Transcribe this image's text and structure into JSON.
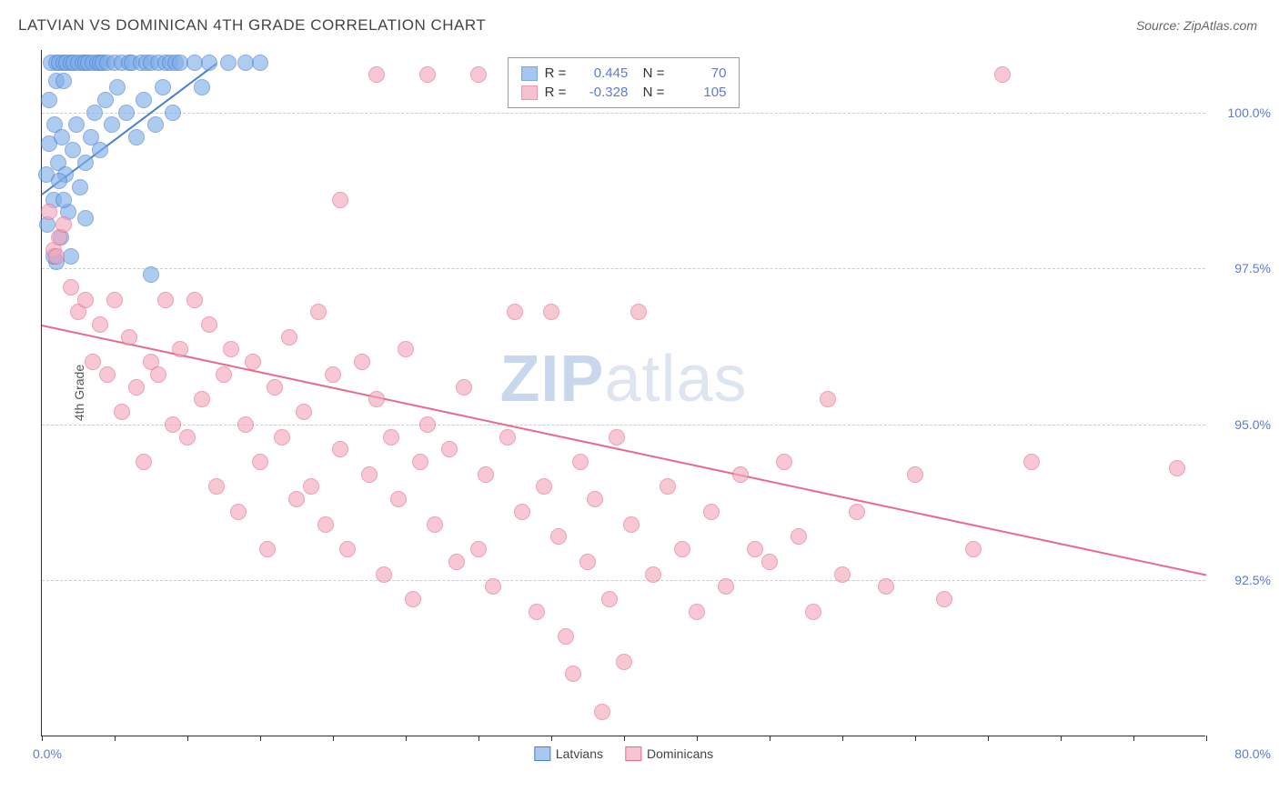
{
  "title": "LATVIAN VS DOMINICAN 4TH GRADE CORRELATION CHART",
  "source": "Source: ZipAtlas.com",
  "ylabel": "4th Grade",
  "watermark_bold": "ZIP",
  "watermark_light": "atlas",
  "chart": {
    "type": "scatter",
    "background_color": "#ffffff",
    "grid_color": "#cccccc",
    "axis_color": "#333333",
    "xlim": [
      0,
      80
    ],
    "ylim": [
      90,
      101
    ],
    "xtick_label_min": "0.0%",
    "xtick_label_max": "80.0%",
    "xtick_positions": [
      0,
      5,
      10,
      15,
      20,
      25,
      30,
      35,
      40,
      45,
      50,
      55,
      60,
      65,
      70,
      75,
      80
    ],
    "yticks": [
      {
        "v": 100.0,
        "label": "100.0%"
      },
      {
        "v": 97.5,
        "label": "97.5%"
      },
      {
        "v": 95.0,
        "label": "95.0%"
      },
      {
        "v": 92.5,
        "label": "92.5%"
      }
    ],
    "marker_radius": 9,
    "marker_stroke_width": 1.5,
    "marker_fill_opacity": 0.28,
    "trend_line_width": 2,
    "series": [
      {
        "name": "Latvians",
        "color_stroke": "#4a7fd1",
        "color_fill": "#7faee8",
        "R": "0.445",
        "N": "70",
        "trend": {
          "x1": 0,
          "y1": 98.7,
          "x2": 12,
          "y2": 100.8
        },
        "points": [
          [
            0.3,
            99.0
          ],
          [
            0.4,
            98.2
          ],
          [
            0.5,
            99.5
          ],
          [
            0.6,
            100.8
          ],
          [
            0.8,
            98.6
          ],
          [
            0.9,
            99.8
          ],
          [
            1.0,
            100.8
          ],
          [
            1.0,
            97.6
          ],
          [
            1.1,
            99.2
          ],
          [
            1.2,
            100.8
          ],
          [
            1.3,
            98.0
          ],
          [
            1.4,
            99.6
          ],
          [
            1.5,
            100.8
          ],
          [
            1.6,
            99.0
          ],
          [
            1.7,
            100.8
          ],
          [
            1.8,
            98.4
          ],
          [
            2.0,
            100.8
          ],
          [
            2.1,
            99.4
          ],
          [
            2.2,
            100.8
          ],
          [
            2.4,
            99.8
          ],
          [
            2.5,
            100.8
          ],
          [
            2.6,
            98.8
          ],
          [
            2.8,
            100.8
          ],
          [
            3.0,
            99.2
          ],
          [
            3.0,
            100.8
          ],
          [
            3.2,
            100.8
          ],
          [
            3.4,
            99.6
          ],
          [
            3.5,
            100.8
          ],
          [
            3.6,
            100.0
          ],
          [
            3.8,
            100.8
          ],
          [
            4.0,
            99.4
          ],
          [
            4.0,
            100.8
          ],
          [
            4.2,
            100.8
          ],
          [
            4.4,
            100.2
          ],
          [
            4.5,
            100.8
          ],
          [
            4.8,
            99.8
          ],
          [
            5.0,
            100.8
          ],
          [
            5.2,
            100.4
          ],
          [
            5.5,
            100.8
          ],
          [
            5.8,
            100.0
          ],
          [
            6.0,
            100.8
          ],
          [
            6.2,
            100.8
          ],
          [
            6.5,
            99.6
          ],
          [
            6.8,
            100.8
          ],
          [
            7.0,
            100.2
          ],
          [
            7.2,
            100.8
          ],
          [
            7.5,
            100.8
          ],
          [
            7.8,
            99.8
          ],
          [
            8.0,
            100.8
          ],
          [
            8.3,
            100.4
          ],
          [
            8.5,
            100.8
          ],
          [
            8.8,
            100.8
          ],
          [
            9.0,
            100.0
          ],
          [
            9.2,
            100.8
          ],
          [
            9.5,
            100.8
          ],
          [
            10.5,
            100.8
          ],
          [
            11.0,
            100.4
          ],
          [
            11.5,
            100.8
          ],
          [
            12.8,
            100.8
          ],
          [
            14.0,
            100.8
          ],
          [
            15.0,
            100.8
          ],
          [
            2.0,
            97.7
          ],
          [
            7.5,
            97.4
          ],
          [
            0.8,
            97.7
          ],
          [
            1.5,
            98.6
          ],
          [
            0.5,
            100.2
          ],
          [
            1.0,
            100.5
          ],
          [
            1.5,
            100.5
          ],
          [
            3.0,
            98.3
          ],
          [
            1.2,
            98.9
          ]
        ]
      },
      {
        "name": "Dominicans",
        "color_stroke": "#e86b8c",
        "color_fill": "#f4a8bc",
        "R": "-0.328",
        "N": "105",
        "trend": {
          "x1": 0,
          "y1": 96.6,
          "x2": 80,
          "y2": 92.6
        },
        "points": [
          [
            0.5,
            98.4
          ],
          [
            0.8,
            97.8
          ],
          [
            1.0,
            97.7
          ],
          [
            1.2,
            98.0
          ],
          [
            1.5,
            98.2
          ],
          [
            2.0,
            97.2
          ],
          [
            2.5,
            96.8
          ],
          [
            3.0,
            97.0
          ],
          [
            3.5,
            96.0
          ],
          [
            4.0,
            96.6
          ],
          [
            4.5,
            95.8
          ],
          [
            5.0,
            97.0
          ],
          [
            5.5,
            95.2
          ],
          [
            6.0,
            96.4
          ],
          [
            6.5,
            95.6
          ],
          [
            7.0,
            94.4
          ],
          [
            7.5,
            96.0
          ],
          [
            8.0,
            95.8
          ],
          [
            8.5,
            97.0
          ],
          [
            9.0,
            95.0
          ],
          [
            9.5,
            96.2
          ],
          [
            10.0,
            94.8
          ],
          [
            10.5,
            97.0
          ],
          [
            11.0,
            95.4
          ],
          [
            11.5,
            96.6
          ],
          [
            12.0,
            94.0
          ],
          [
            12.5,
            95.8
          ],
          [
            13.0,
            96.2
          ],
          [
            13.5,
            93.6
          ],
          [
            14.0,
            95.0
          ],
          [
            14.5,
            96.0
          ],
          [
            15.0,
            94.4
          ],
          [
            15.5,
            93.0
          ],
          [
            16.0,
            95.6
          ],
          [
            16.5,
            94.8
          ],
          [
            17.0,
            96.4
          ],
          [
            17.5,
            93.8
          ],
          [
            18.0,
            95.2
          ],
          [
            18.5,
            94.0
          ],
          [
            19.0,
            96.8
          ],
          [
            19.5,
            93.4
          ],
          [
            20.0,
            95.8
          ],
          [
            20.5,
            94.6
          ],
          [
            21.0,
            93.0
          ],
          [
            22.0,
            96.0
          ],
          [
            22.5,
            94.2
          ],
          [
            23.0,
            95.4
          ],
          [
            23.5,
            92.6
          ],
          [
            24.0,
            94.8
          ],
          [
            24.5,
            93.8
          ],
          [
            25.0,
            96.2
          ],
          [
            25.5,
            92.2
          ],
          [
            26.0,
            94.4
          ],
          [
            26.5,
            95.0
          ],
          [
            27.0,
            93.4
          ],
          [
            28.0,
            94.6
          ],
          [
            28.5,
            92.8
          ],
          [
            29.0,
            95.6
          ],
          [
            30.0,
            93.0
          ],
          [
            30.5,
            94.2
          ],
          [
            31.0,
            92.4
          ],
          [
            32.0,
            94.8
          ],
          [
            32.5,
            96.8
          ],
          [
            33.0,
            93.6
          ],
          [
            34.0,
            92.0
          ],
          [
            34.5,
            94.0
          ],
          [
            35.0,
            96.8
          ],
          [
            35.5,
            93.2
          ],
          [
            36.0,
            91.6
          ],
          [
            37.0,
            94.4
          ],
          [
            37.5,
            92.8
          ],
          [
            38.0,
            93.8
          ],
          [
            38.5,
            90.4
          ],
          [
            39.0,
            92.2
          ],
          [
            39.5,
            94.8
          ],
          [
            40.0,
            91.2
          ],
          [
            40.5,
            93.4
          ],
          [
            41.0,
            96.8
          ],
          [
            42.0,
            92.6
          ],
          [
            43.0,
            94.0
          ],
          [
            44.0,
            93.0
          ],
          [
            45.0,
            92.0
          ],
          [
            46.0,
            93.6
          ],
          [
            47.0,
            92.4
          ],
          [
            48.0,
            94.2
          ],
          [
            49.0,
            93.0
          ],
          [
            50.0,
            92.8
          ],
          [
            51.0,
            94.4
          ],
          [
            52.0,
            93.2
          ],
          [
            53.0,
            92.0
          ],
          [
            54.0,
            95.4
          ],
          [
            55.0,
            92.6
          ],
          [
            56.0,
            93.6
          ],
          [
            58.0,
            92.4
          ],
          [
            60.0,
            94.2
          ],
          [
            62.0,
            92.2
          ],
          [
            64.0,
            93.0
          ],
          [
            66.0,
            100.6
          ],
          [
            68.0,
            94.4
          ],
          [
            23.0,
            100.6
          ],
          [
            26.5,
            100.6
          ],
          [
            30.0,
            100.6
          ],
          [
            20.5,
            98.6
          ],
          [
            36.5,
            91.0
          ],
          [
            78.0,
            94.3
          ]
        ]
      }
    ],
    "legend_bottom": [
      {
        "label": "Latvians",
        "swatch_fill": "#a8c8ef",
        "swatch_stroke": "#4a7fd1"
      },
      {
        "label": "Dominicans",
        "swatch_fill": "#f6c4d2",
        "swatch_stroke": "#e86b8c"
      }
    ]
  }
}
